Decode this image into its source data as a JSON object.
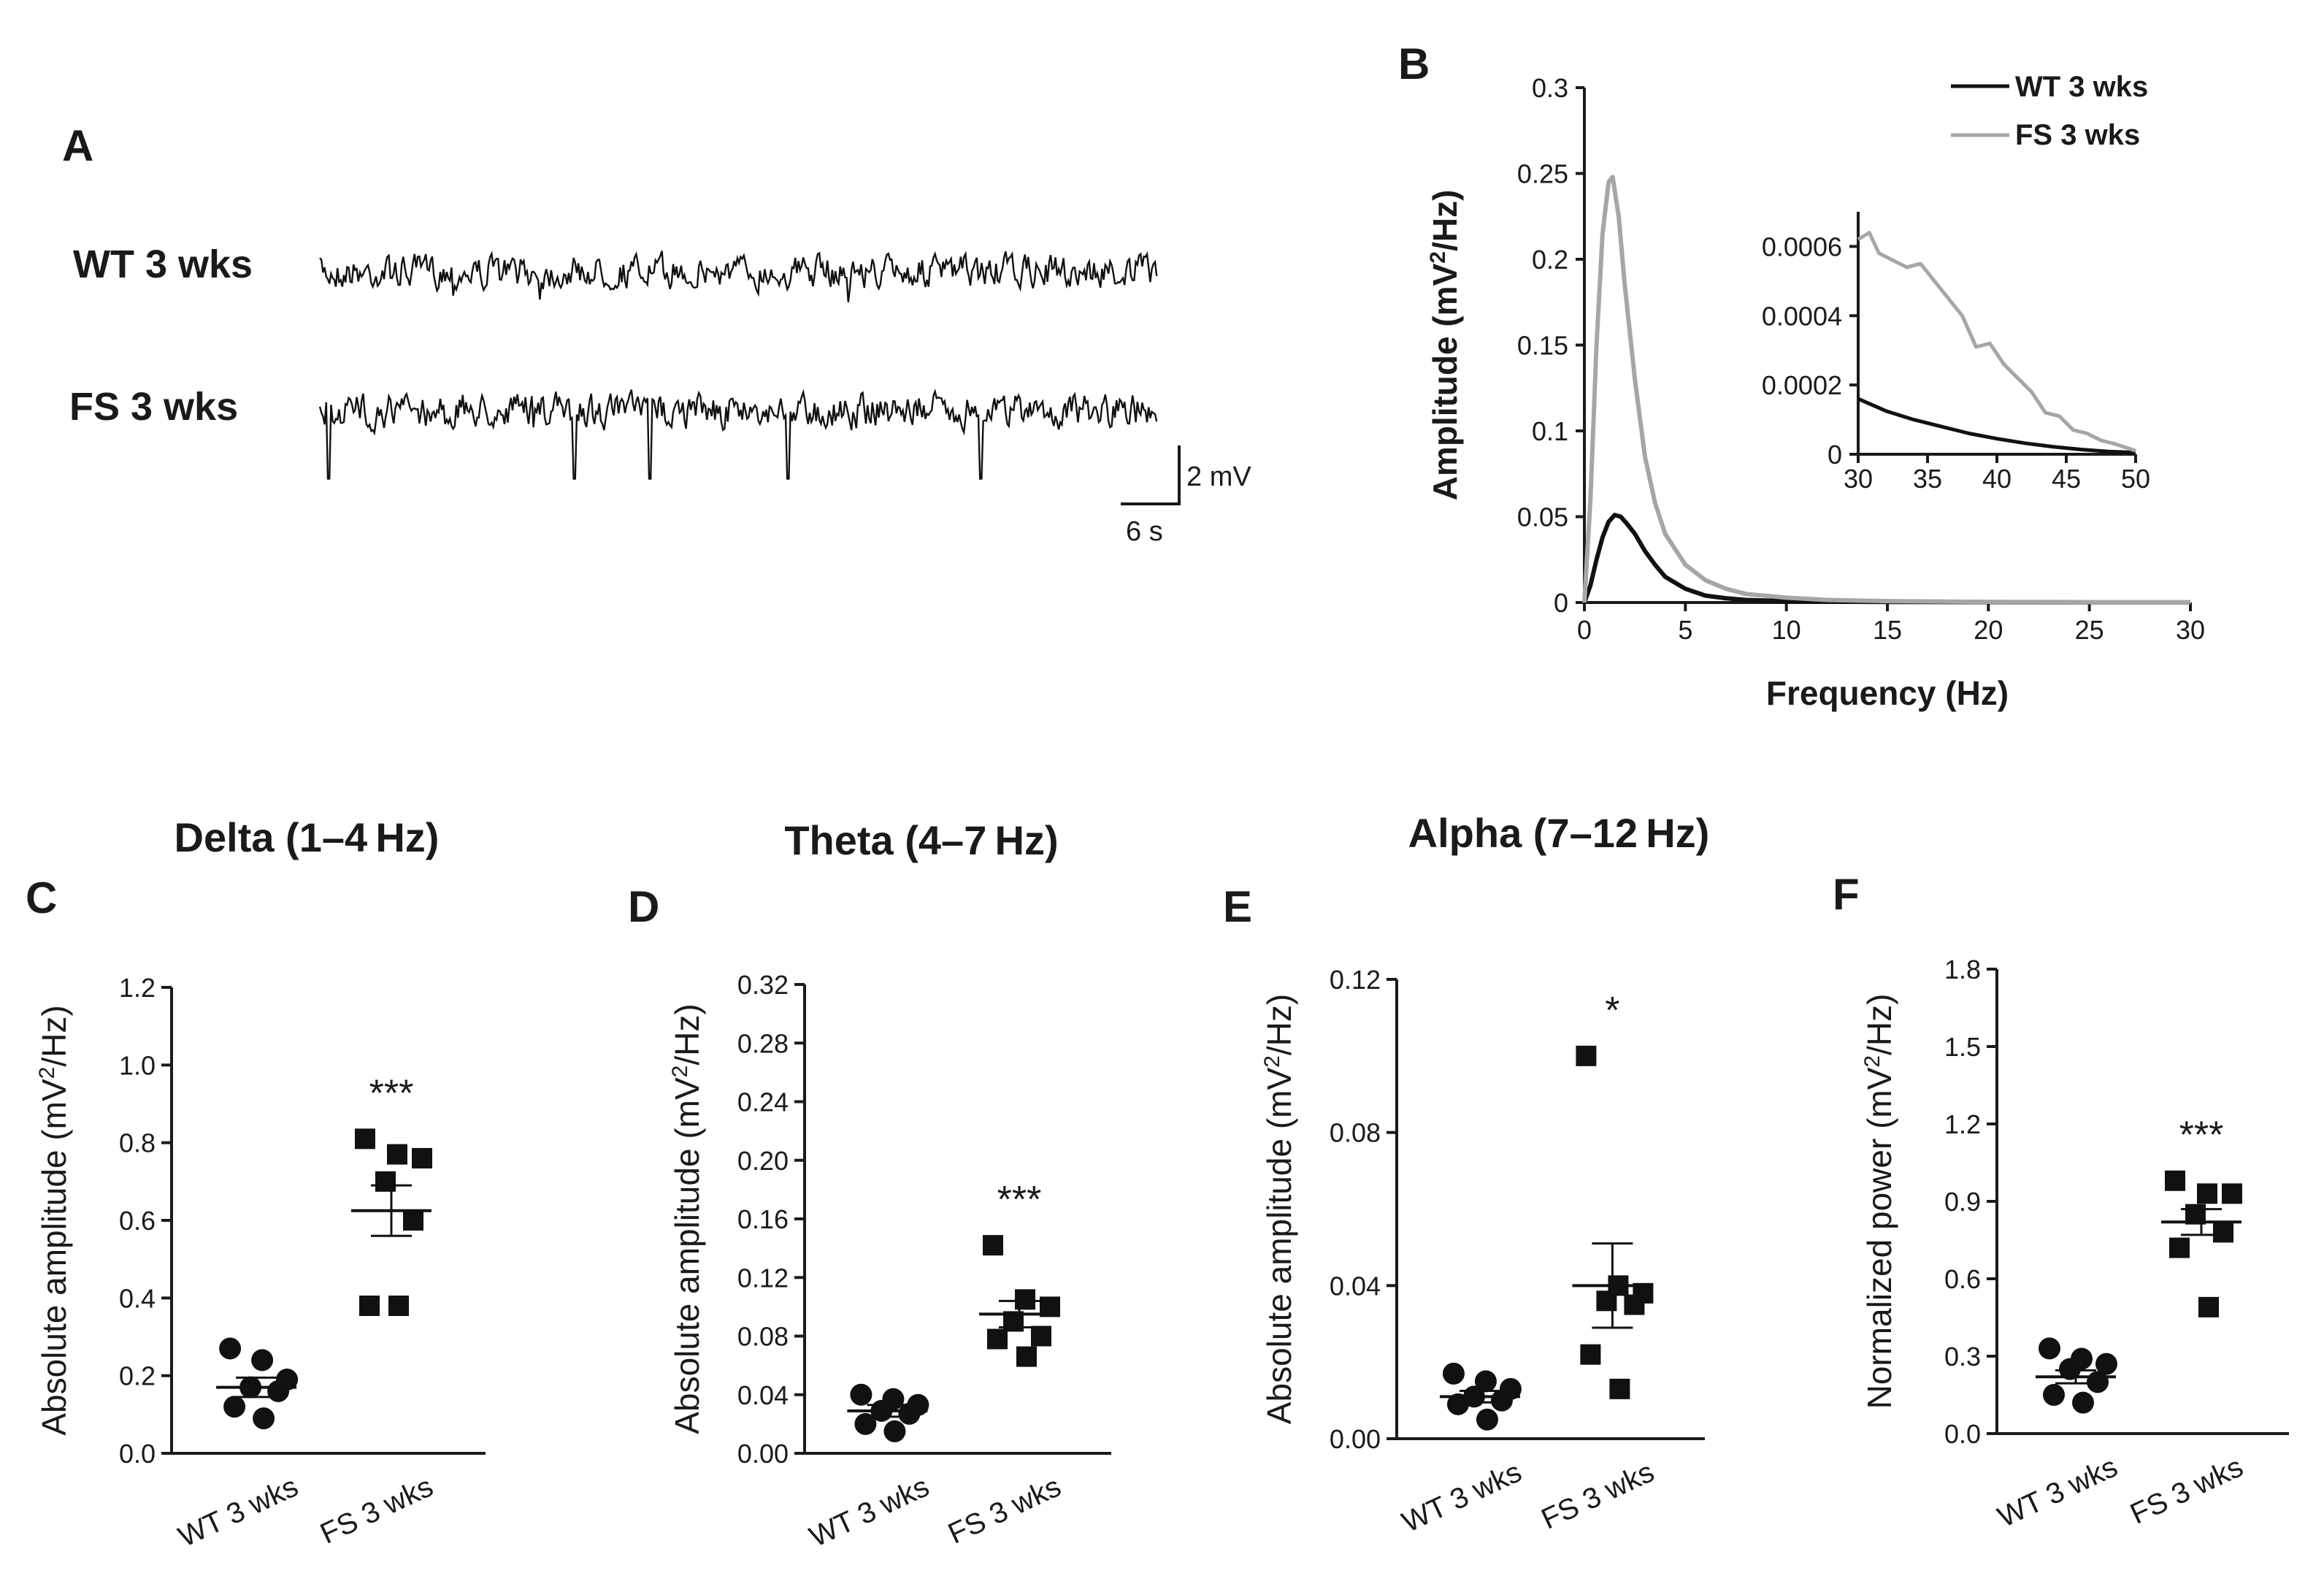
{
  "panels": {
    "A": "A",
    "B": "B",
    "C": "C",
    "D": "D",
    "E": "E",
    "F": "F"
  },
  "traces": {
    "wt_label": "WT 3 wks",
    "fs_label": "FS 3 wks",
    "scale_v": "2 mV",
    "scale_t": "6 s"
  },
  "colors": {
    "wt": "#111111",
    "fs": "#a6a6a6",
    "axis": "#1a1a1a"
  },
  "chart_data": [
    {
      "id": "B",
      "type": "line",
      "xlabel": "Frequency (Hz)",
      "ylabel_main": "Amplitude (mV",
      "ylabel_sup": "2",
      "ylabel_end": "/Hz)",
      "xlim": [
        0,
        30
      ],
      "ylim": [
        0,
        0.3
      ],
      "xticks": [
        "0",
        "5",
        "10",
        "15",
        "20",
        "25",
        "30"
      ],
      "yticks": [
        "0",
        "0.05",
        "0.1",
        "0.15",
        "0.2",
        "0.25",
        "0.3"
      ],
      "legend": [
        "WT 3 wks",
        "FS 3 wks"
      ],
      "series": [
        {
          "name": "WT 3 wks",
          "x": [
            0,
            0.3,
            0.6,
            0.9,
            1.2,
            1.5,
            1.8,
            2.1,
            2.5,
            3,
            3.5,
            4,
            5,
            6,
            7,
            8,
            10,
            12,
            15,
            20,
            25,
            30
          ],
          "y": [
            0,
            0.01,
            0.025,
            0.038,
            0.047,
            0.051,
            0.05,
            0.046,
            0.04,
            0.03,
            0.022,
            0.015,
            0.008,
            0.004,
            0.0025,
            0.0015,
            0.0008,
            0.0005,
            0.0003,
            0.0002,
            0.0001,
            0.0001
          ]
        },
        {
          "name": "FS 3 wks",
          "x": [
            0,
            0.3,
            0.6,
            0.9,
            1.2,
            1.4,
            1.7,
            2,
            2.5,
            3,
            3.5,
            4,
            5,
            6,
            7,
            8,
            10,
            12,
            15,
            20,
            25,
            30
          ],
          "y": [
            0,
            0.06,
            0.15,
            0.215,
            0.245,
            0.248,
            0.225,
            0.185,
            0.13,
            0.085,
            0.058,
            0.04,
            0.022,
            0.013,
            0.008,
            0.005,
            0.0028,
            0.0015,
            0.0008,
            0.0004,
            0.0002,
            0.0002
          ]
        }
      ]
    },
    {
      "id": "B-inset",
      "type": "line",
      "xlim": [
        30,
        50
      ],
      "ylim": [
        0,
        0.0007
      ],
      "xticks": [
        "30",
        "35",
        "40",
        "45",
        "50"
      ],
      "yticks": [
        "0",
        "0.0002",
        "0.0004",
        "0.0006"
      ],
      "series": [
        {
          "name": "WT 3 wks",
          "x": [
            30,
            32,
            34,
            36,
            38,
            40,
            42,
            44,
            46,
            48,
            50
          ],
          "y": [
            0.00016,
            0.000125,
            0.0001,
            8e-05,
            6e-05,
            4.5e-05,
            3.2e-05,
            2.2e-05,
            1.4e-05,
            8e-06,
            5e-06
          ]
        },
        {
          "name": "FS 3 wks",
          "x": [
            30,
            30.8,
            31.5,
            32.5,
            33.5,
            34.5,
            35.5,
            36.5,
            37.5,
            38.5,
            39.5,
            40.5,
            41.5,
            42.5,
            43.5,
            44.5,
            45.5,
            46.5,
            47.5,
            48.5,
            50
          ],
          "y": [
            0.00062,
            0.00064,
            0.00058,
            0.00056,
            0.00054,
            0.00055,
            0.0005,
            0.00045,
            0.0004,
            0.00031,
            0.00032,
            0.00026,
            0.00022,
            0.00018,
            0.00012,
            0.00011,
            7e-05,
            6e-05,
            4e-05,
            3e-05,
            1e-05
          ]
        }
      ]
    },
    {
      "id": "C",
      "type": "scatter",
      "title": "Delta (1–4 Hz)",
      "ylabel_main": "Absolute amplitude (mV",
      "ylabel_sup": "2",
      "ylabel_end": "/Hz)",
      "ylim": [
        0,
        1.2
      ],
      "yticks": [
        "0.0",
        "0.2",
        "0.4",
        "0.6",
        "0.8",
        "1.0",
        "1.2"
      ],
      "categories": [
        "WT 3 wks",
        "FS 3 wks"
      ],
      "groups": [
        {
          "name": "WT 3 wks",
          "marker": "circle",
          "points": [
            0.27,
            0.24,
            0.19,
            0.17,
            0.16,
            0.12,
            0.09
          ],
          "mean": 0.17,
          "sem": 0.025
        },
        {
          "name": "FS 3 wks",
          "marker": "square",
          "points": [
            0.81,
            0.77,
            0.76,
            0.7,
            0.6,
            0.38,
            0.38
          ],
          "mean": 0.625,
          "sem": 0.065
        }
      ],
      "significance": "***"
    },
    {
      "id": "D",
      "type": "scatter",
      "title": "Theta (4–7 Hz)",
      "ylabel_main": "Absolute amplitude (mV",
      "ylabel_sup": "2",
      "ylabel_end": "/Hz)",
      "ylim": [
        0,
        0.32
      ],
      "yticks": [
        "0.00",
        "0.04",
        "0.08",
        "0.12",
        "0.16",
        "0.20",
        "0.24",
        "0.28",
        "0.32"
      ],
      "categories": [
        "WT 3 wks",
        "FS 3 wks"
      ],
      "groups": [
        {
          "name": "WT 3 wks",
          "marker": "circle",
          "points": [
            0.04,
            0.037,
            0.033,
            0.029,
            0.027,
            0.02,
            0.015
          ],
          "mean": 0.029,
          "sem": 0.004
        },
        {
          "name": "FS 3 wks",
          "marker": "square",
          "points": [
            0.142,
            0.105,
            0.1,
            0.09,
            0.08,
            0.078,
            0.066
          ],
          "mean": 0.095,
          "sem": 0.009
        }
      ],
      "significance": "***"
    },
    {
      "id": "E",
      "type": "scatter",
      "title": "Alpha (7–12 Hz)",
      "ylabel_main": "Absolute amplitude (mV",
      "ylabel_sup": "2",
      "ylabel_end": "/Hz)",
      "ylim": [
        0,
        0.12
      ],
      "yticks": [
        "0.00",
        "0.04",
        "0.08",
        "0.12"
      ],
      "categories": [
        "WT 3 wks",
        "FS 3 wks"
      ],
      "groups": [
        {
          "name": "WT 3 wks",
          "marker": "circle",
          "points": [
            0.017,
            0.015,
            0.013,
            0.011,
            0.01,
            0.009,
            0.005
          ],
          "mean": 0.011,
          "sem": 0.0015
        },
        {
          "name": "FS 3 wks",
          "marker": "square",
          "points": [
            0.1,
            0.04,
            0.038,
            0.036,
            0.035,
            0.022,
            0.013
          ],
          "mean": 0.04,
          "sem": 0.011
        },
        {
          "name": "_",
          "points": []
        }
      ],
      "significance": "*"
    },
    {
      "id": "F",
      "type": "scatter",
      "title": "",
      "ylabel_main": "Normalized power (mV",
      "ylabel_sup": "2",
      "ylabel_end": "/Hz)",
      "ylim": [
        0,
        1.8
      ],
      "yticks": [
        "0.0",
        "0.3",
        "0.6",
        "0.9",
        "1.2",
        "1.5",
        "1.8"
      ],
      "categories": [
        "WT 3 wks",
        "FS 3 wks"
      ],
      "groups": [
        {
          "name": "WT 3 wks",
          "marker": "circle",
          "points": [
            0.33,
            0.29,
            0.27,
            0.25,
            0.2,
            0.15,
            0.12
          ],
          "mean": 0.22,
          "sem": 0.025
        },
        {
          "name": "FS 3 wks",
          "marker": "square",
          "points": [
            0.98,
            0.93,
            0.93,
            0.85,
            0.78,
            0.72,
            0.49
          ],
          "mean": 0.82,
          "sem": 0.05
        }
      ],
      "significance": "***"
    }
  ]
}
